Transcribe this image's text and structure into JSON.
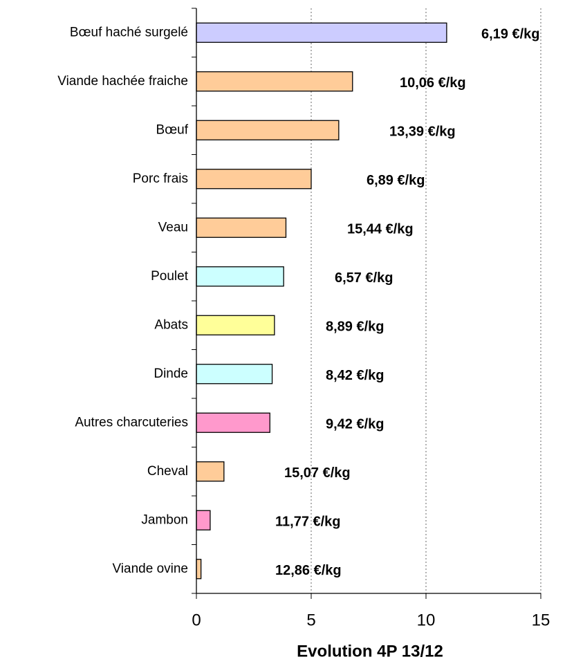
{
  "chart_data": {
    "type": "hbar",
    "categories": [
      "Bœuf haché surgelé",
      "Viande hachée fraiche",
      "Bœuf",
      "Porc frais",
      "Veau",
      "Poulet",
      "Abats",
      "Dinde",
      "Autres charcuteries",
      "Cheval",
      "Jambon",
      "Viande ovine"
    ],
    "values": [
      10.9,
      6.8,
      6.2,
      5.0,
      3.9,
      3.8,
      3.4,
      3.3,
      3.2,
      1.2,
      0.6,
      0.2
    ],
    "colors": [
      "#ccccff",
      "#ffcc99",
      "#ffcc99",
      "#ffcc99",
      "#ffcc99",
      "#ccffff",
      "#ffff99",
      "#ccffff",
      "#ff99cc",
      "#ffcc99",
      "#ff99cc",
      "#ffcc99"
    ],
    "annotations": [
      "6,19 €/kg",
      "10,06 €/kg",
      "13,39 €/kg",
      "6,89 €/kg",
      "15,44 €/kg",
      "6,57 €/kg",
      "8,89 €/kg",
      "8,42 €/kg",
      "9,42 €/kg",
      "15,07 €/kg",
      "11,77 €/kg",
      "12,86 €/kg"
    ],
    "xlabel": "Evolution 4P 13/12",
    "xlim": [
      0,
      15
    ],
    "xticks": [
      0,
      5,
      10,
      15
    ],
    "grid": true
  }
}
